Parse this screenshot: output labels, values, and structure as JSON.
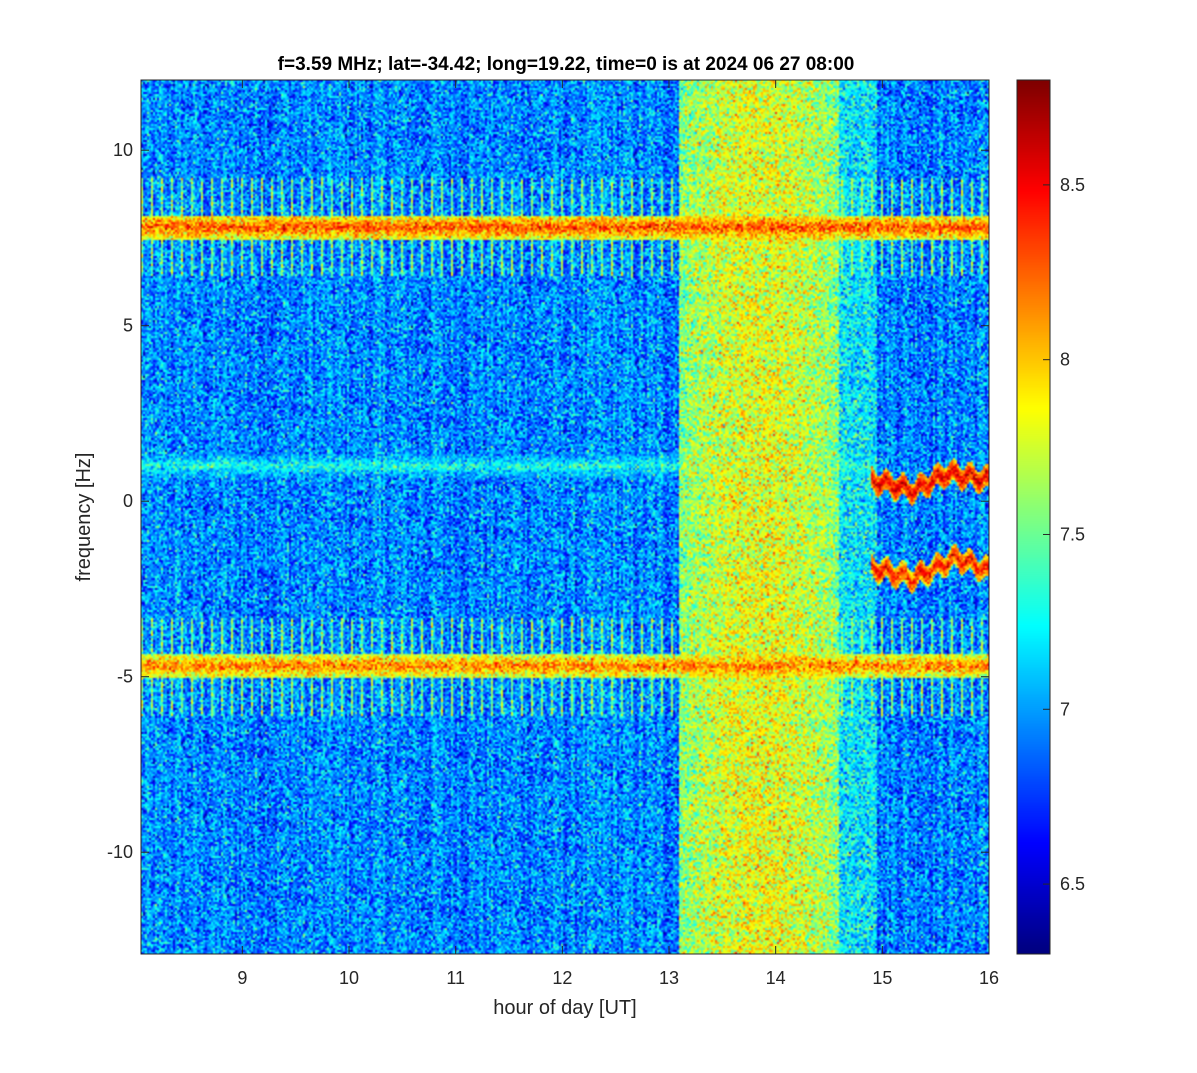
{
  "chart_data": {
    "type": "heatmap",
    "title": "f=3.59 MHz;  lat=-34.42; long=19.22, time=0 is at 2024 06 27 08:00",
    "xlabel": "hour of day [UT]",
    "ylabel": "frequency [Hz]",
    "xlim": [
      8.05,
      16.0
    ],
    "ylim": [
      -12.9,
      12.0
    ],
    "x_ticks": [
      9,
      10,
      11,
      12,
      13,
      14,
      15,
      16
    ],
    "y_ticks": [
      -10,
      -5,
      0,
      5,
      10
    ],
    "colorbar": {
      "colormap": "jet",
      "clim": [
        6.3,
        8.8
      ],
      "ticks": [
        6.5,
        7,
        7.5,
        8,
        8.5
      ]
    },
    "background_level": 6.95,
    "features": [
      {
        "kind": "band",
        "x": [
          13.1,
          14.6
        ],
        "level": 7.75,
        "note": "broadband enhancement"
      },
      {
        "kind": "band",
        "x": [
          14.6,
          14.95
        ],
        "level": 7.2
      },
      {
        "kind": "line",
        "y": 7.8,
        "x": [
          8.05,
          16.0
        ],
        "level": 8.3
      },
      {
        "kind": "line",
        "y": -4.7,
        "x": [
          8.05,
          16.0
        ],
        "level": 8.2
      },
      {
        "kind": "line",
        "y": 1.0,
        "x": [
          8.05,
          14.9
        ],
        "level": 7.3
      },
      {
        "kind": "trace",
        "points": [
          [
            14.9,
            0.6
          ],
          [
            15.3,
            0.3
          ],
          [
            15.6,
            0.8
          ],
          [
            16.0,
            0.6
          ]
        ],
        "level": 8.6
      },
      {
        "kind": "trace",
        "points": [
          [
            14.9,
            -1.9
          ],
          [
            15.3,
            -2.2
          ],
          [
            15.7,
            -1.6
          ],
          [
            16.0,
            -2.0
          ]
        ],
        "level": 8.5
      }
    ]
  }
}
